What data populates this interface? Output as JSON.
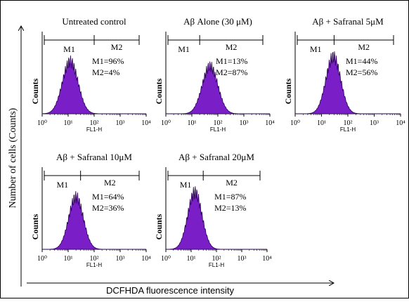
{
  "figure": {
    "y_axis_label": "Number of cells (Counts)",
    "x_axis_label": "DCFHDA fluorescence intensity"
  },
  "colors": {
    "histogram_fill": "#7a1fc8",
    "histogram_stroke": "#2a0055",
    "axis": "#000000"
  },
  "chart_data": [
    {
      "type": "area",
      "title": "Untreated control",
      "xlabel": "FL1-H",
      "ylabel": "Counts",
      "x_scale": "log",
      "xlim": [
        1,
        10000
      ],
      "x_ticks": [
        "10⁰",
        "10¹",
        "10²",
        "10³",
        "10⁴"
      ],
      "gate_labels": [
        "M1",
        "M2"
      ],
      "gate_boundary": 100,
      "stats": [
        "M1=96%",
        "M2=4%"
      ],
      "histogram": {
        "peak_x": 12,
        "width_decades": 0.3,
        "peak_height": 0.55
      }
    },
    {
      "type": "area",
      "title": "Aβ Alone (30 μM)",
      "xlabel": "FL1-H",
      "ylabel": "Counts",
      "x_scale": "log",
      "xlim": [
        1,
        10000
      ],
      "x_ticks": [
        "10⁰",
        "10¹",
        "10²",
        "10³",
        "10⁴"
      ],
      "gate_labels": [
        "M1",
        "M2"
      ],
      "gate_boundary": 20,
      "stats": [
        "M1=13%",
        "M2=87%"
      ],
      "histogram": {
        "peak_x": 50,
        "width_decades": 0.3,
        "peak_height": 0.5
      }
    },
    {
      "type": "area",
      "title": "Aβ + Safranal 5μM",
      "xlabel": "FL1-H",
      "ylabel": "Counts",
      "x_scale": "log",
      "xlim": [
        1,
        10000
      ],
      "x_ticks": [
        "10⁰",
        "10¹",
        "10²",
        "10³",
        "10⁴"
      ],
      "gate_labels": [
        "M1",
        "M2"
      ],
      "gate_boundary": 30,
      "stats": [
        "M1=44%",
        "M2=56%"
      ],
      "histogram": {
        "peak_x": 28,
        "width_decades": 0.28,
        "peak_height": 0.6
      }
    },
    {
      "type": "area",
      "title": "Aβ + Safranal 10μM",
      "xlabel": "FL1-H",
      "ylabel": "Counts",
      "x_scale": "log",
      "xlim": [
        1,
        10000
      ],
      "x_ticks": [
        "10⁰",
        "10¹",
        "10²",
        "10³",
        "10⁴"
      ],
      "gate_labels": [
        "M1",
        "M2"
      ],
      "gate_boundary": 30,
      "stats": [
        "M1=64%",
        "M2=36%"
      ],
      "histogram": {
        "peak_x": 20,
        "width_decades": 0.28,
        "peak_height": 0.55
      }
    },
    {
      "type": "area",
      "title": "Aβ + Safranal 20μM",
      "xlabel": "FL1-H",
      "ylabel": "Counts",
      "x_scale": "log",
      "xlim": [
        1,
        10000
      ],
      "x_ticks": [
        "10⁰",
        "10¹",
        "10²",
        "10³",
        "10⁴"
      ],
      "gate_labels": [
        "M1",
        "M2"
      ],
      "gate_boundary": 30,
      "stats": [
        "M1=87%",
        "M2=13%"
      ],
      "histogram": {
        "peak_x": 14,
        "width_decades": 0.28,
        "peak_height": 0.6
      }
    }
  ]
}
